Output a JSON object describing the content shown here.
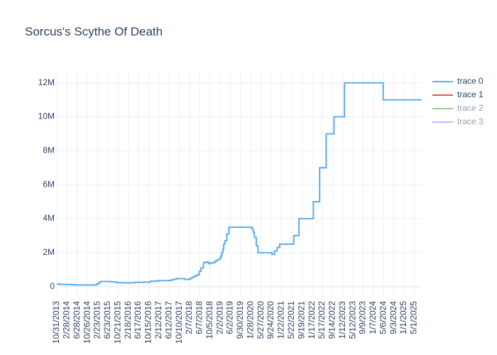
{
  "chart_data": {
    "type": "line",
    "line_shape": "step",
    "title": "Sorcus's Scythe Of Death",
    "xlabel": "",
    "ylabel": "",
    "ylim": [
      -600000,
      12700000
    ],
    "xlim": [
      "2013-10-31",
      "2025-07-28"
    ],
    "grid": true,
    "legend_position": "top-right",
    "x_tick_labels": [
      "10/31/2013",
      "2/28/2014",
      "6/28/2014",
      "10/26/2014",
      "2/23/2015",
      "6/23/2015",
      "10/21/2015",
      "2/18/2016",
      "6/17/2016",
      "10/15/2016",
      "2/12/2017",
      "6/12/2017",
      "10/10/2017",
      "2/7/2018",
      "6/7/2018",
      "10/5/2018",
      "2/2/2019",
      "6/2/2019",
      "9/30/2019",
      "1/28/2020",
      "5/27/2020",
      "9/24/2020",
      "1/22/2021",
      "5/22/2021",
      "9/19/2021",
      "1/17/2022",
      "5/17/2022",
      "9/14/2022",
      "1/12/2023",
      "5/12/2023",
      "9/9/2023",
      "1/7/2024",
      "5/6/2024",
      "9/3/2024",
      "1/1/2025",
      "5/1/2025"
    ],
    "y_ticks": [
      0,
      2000000,
      4000000,
      6000000,
      8000000,
      10000000,
      12000000
    ],
    "y_tick_labels": [
      "0",
      "2M",
      "4M",
      "6M",
      "8M",
      "10M",
      "12M"
    ],
    "series": [
      {
        "name": "trace 0",
        "color": "#5DADEC",
        "x": [
          "2013-10-31",
          "2013-12-05",
          "2014-02-20",
          "2014-04-15",
          "2014-06-10",
          "2014-08-01",
          "2014-10-15",
          "2015-01-01",
          "2015-02-10",
          "2015-03-10",
          "2015-04-01",
          "2015-05-01",
          "2015-08-01",
          "2015-10-01",
          "2016-01-01",
          "2016-05-01",
          "2016-08-15",
          "2016-10-01",
          "2016-11-01",
          "2017-02-01",
          "2017-05-01",
          "2017-06-20",
          "2017-07-20",
          "2017-09-01",
          "2017-11-01",
          "2017-12-15",
          "2018-02-01",
          "2018-02-20",
          "2018-03-10",
          "2018-04-01",
          "2018-04-20",
          "2018-05-10",
          "2018-06-01",
          "2018-06-20",
          "2018-07-20",
          "2018-08-15",
          "2018-09-15",
          "2018-10-10",
          "2018-12-01",
          "2019-01-01",
          "2019-02-01",
          "2019-02-10",
          "2019-02-20",
          "2019-03-05",
          "2019-03-15",
          "2019-03-28",
          "2019-04-20",
          "2019-05-15",
          "2019-08-01",
          "2019-10-15",
          "2020-01-28",
          "2020-02-10",
          "2020-02-25",
          "2020-03-10",
          "2020-04-01",
          "2020-04-20",
          "2020-09-01",
          "2020-10-01",
          "2020-11-01",
          "2020-12-01",
          "2021-01-01",
          "2021-05-20",
          "2021-06-15",
          "2021-07-01",
          "2021-08-15",
          "2021-10-01",
          "2022-02-01",
          "2022-04-15",
          "2022-06-01",
          "2022-07-01",
          "2022-08-10",
          "2022-10-01",
          "2022-12-01",
          "2023-02-01",
          "2023-03-15",
          "2023-05-01",
          "2023-08-01",
          "2023-09-15",
          "2024-01-01",
          "2024-05-01",
          "2024-09-01",
          "2024-11-15",
          "2025-03-01",
          "2025-07-28"
        ],
        "y": [
          150000,
          130000,
          120000,
          110000,
          100000,
          95000,
          95000,
          100000,
          150000,
          250000,
          300000,
          300000,
          280000,
          230000,
          220000,
          250000,
          270000,
          260000,
          320000,
          350000,
          350000,
          370000,
          420000,
          470000,
          470000,
          420000,
          440000,
          500000,
          550000,
          600000,
          650000,
          700000,
          900000,
          1100000,
          1400000,
          1450000,
          1350000,
          1400000,
          1500000,
          1600000,
          1700000,
          1800000,
          2000000,
          2200000,
          2500000,
          2700000,
          3100000,
          3500000,
          3500000,
          3500000,
          3500000,
          3400000,
          3200000,
          2900000,
          2400000,
          2000000,
          2000000,
          1900000,
          2100000,
          2300000,
          2500000,
          2500000,
          3000000,
          3000000,
          4000000,
          4000000,
          5000000,
          7000000,
          7000000,
          9000000,
          9000000,
          10000000,
          10000000,
          12000000,
          12000000,
          12000000,
          12000000,
          12000000,
          12000000,
          11000000,
          11000000,
          11000000,
          11000000,
          11000000
        ]
      },
      {
        "name": "trace 1",
        "color": "#EF553B",
        "x": [],
        "y": []
      },
      {
        "name": "trace 2",
        "color": "#2CA02C",
        "x": [],
        "y": []
      },
      {
        "name": "trace 3",
        "color": "#AB63FA",
        "x": [],
        "y": []
      }
    ]
  }
}
